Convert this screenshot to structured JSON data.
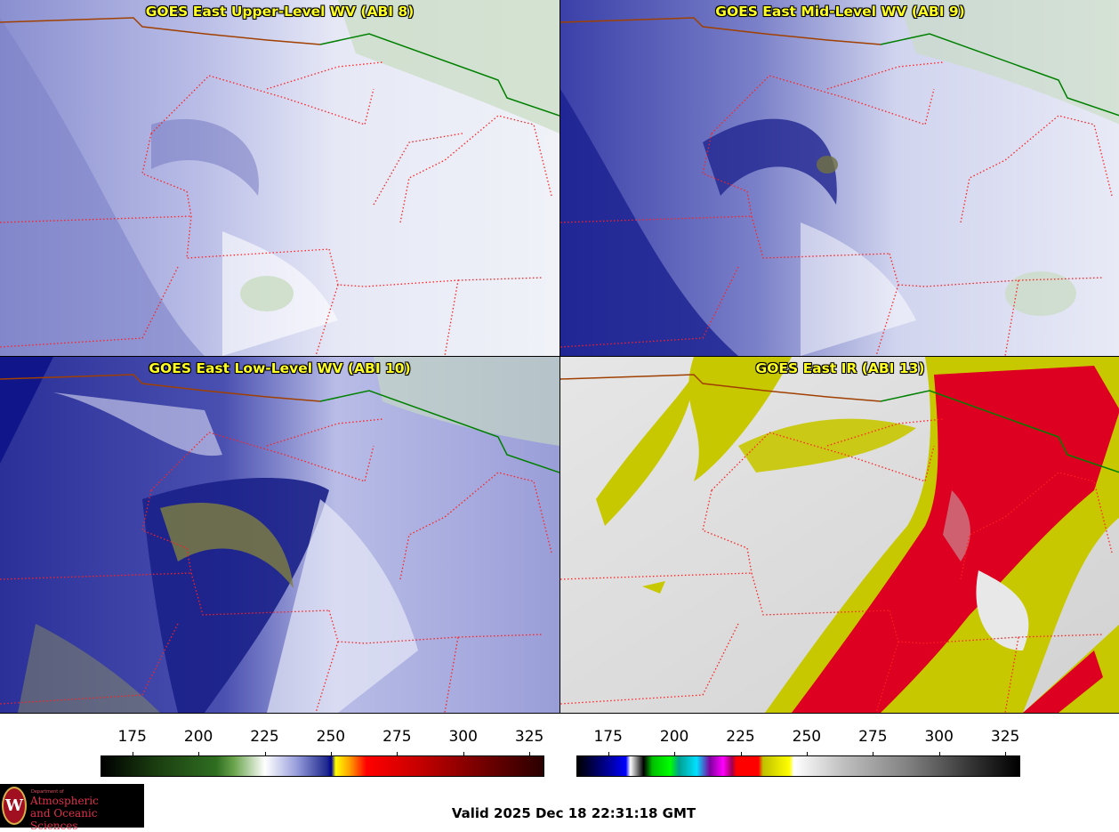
{
  "panels": [
    {
      "title": "GOES East Upper-Level WV (ABI 8)"
    },
    {
      "title": "GOES East Mid-Level WV (ABI 9)"
    },
    {
      "title": "GOES East Low-Level WV (ABI 10)"
    },
    {
      "title": "GOES East IR (ABI 13)"
    }
  ],
  "colorbar_left": {
    "ticks": [
      "175",
      "200",
      "225",
      "250",
      "275",
      "300",
      "325"
    ],
    "min": 163,
    "max": 330
  },
  "colorbar_right": {
    "ticks": [
      "175",
      "200",
      "225",
      "250",
      "275",
      "300",
      "325"
    ],
    "min": 163,
    "max": 330
  },
  "valid_time": "Valid 2025 Dec 18 22:31:18 GMT",
  "logo": {
    "dept": "Department of",
    "line1": "Atmospheric",
    "line2": "and Oceanic Sciences",
    "seal": "W"
  },
  "colors": {
    "title": "#ffff22",
    "borders": "#ff2020",
    "coast": "#a04000",
    "canada": "#008000"
  }
}
